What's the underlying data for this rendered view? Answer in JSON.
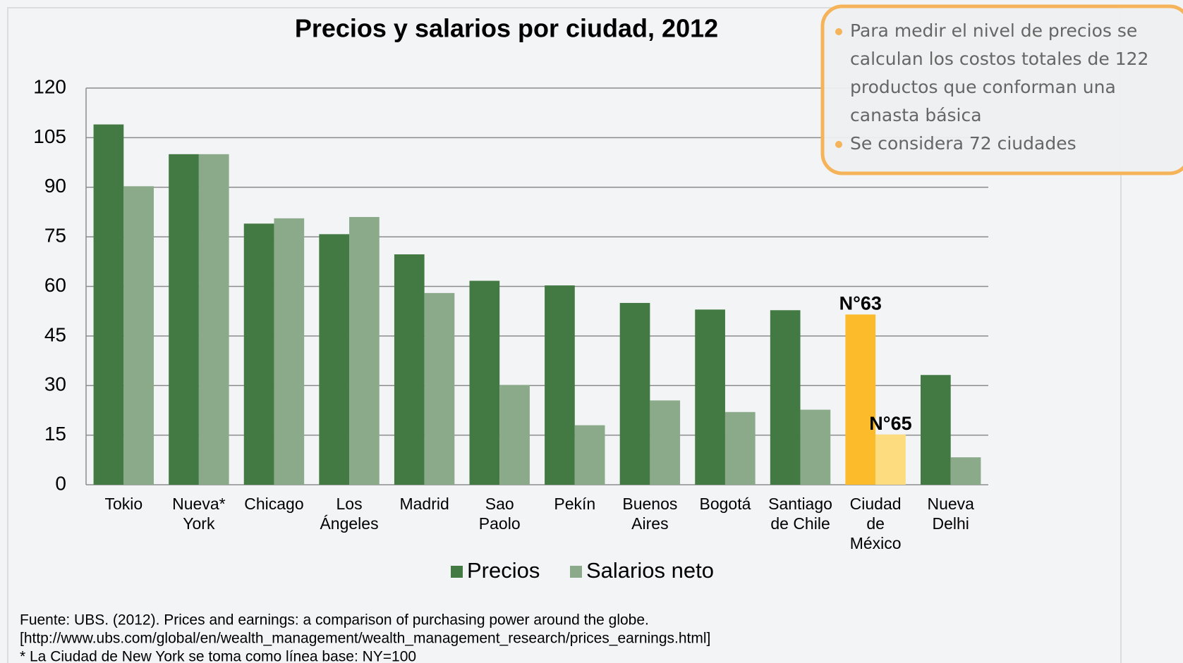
{
  "chart_data": {
    "type": "bar",
    "title": "Precios y salarios por ciudad, 2012",
    "categories": [
      [
        "Tokio"
      ],
      [
        "Nueva*",
        "York"
      ],
      [
        "Chicago"
      ],
      [
        "Los",
        "Ángeles"
      ],
      [
        "Madrid"
      ],
      [
        "Sao",
        "Paolo"
      ],
      [
        "Pekín"
      ],
      [
        "Buenos",
        "Aires"
      ],
      [
        "Bogotá"
      ],
      [
        "Santiago",
        "de Chile"
      ],
      [
        "Ciudad",
        "de",
        "México"
      ],
      [
        "Nueva",
        "Delhi"
      ]
    ],
    "series": [
      {
        "name": "Precios",
        "color": "#437a43",
        "colors": [
          "#437a43",
          "#437a43",
          "#437a43",
          "#437a43",
          "#437a43",
          "#437a43",
          "#437a43",
          "#437a43",
          "#437a43",
          "#437a43",
          "#fbbb2b",
          "#437a43"
        ],
        "values": [
          109,
          100,
          79,
          75.8,
          69.7,
          61.7,
          60.3,
          55,
          53,
          52.8,
          51.5,
          33.2
        ],
        "annotations": [
          null,
          null,
          null,
          null,
          null,
          null,
          null,
          null,
          null,
          null,
          "N°63",
          null
        ]
      },
      {
        "name": "Salarios neto",
        "color": "#8aaa8a",
        "colors": [
          "#8aaa8a",
          "#8aaa8a",
          "#8aaa8a",
          "#8aaa8a",
          "#8aaa8a",
          "#8aaa8a",
          "#8aaa8a",
          "#8aaa8a",
          "#8aaa8a",
          "#8aaa8a",
          "#fddc80",
          "#8aaa8a"
        ],
        "values": [
          90.3,
          100,
          80.6,
          81,
          58,
          30.2,
          18,
          25.5,
          22,
          22.7,
          15.2,
          8.3
        ],
        "annotations": [
          null,
          null,
          null,
          null,
          null,
          null,
          null,
          null,
          null,
          null,
          "N°65",
          null
        ]
      }
    ],
    "ylim": [
      0,
      120
    ],
    "yticks": [
      0,
      15,
      30,
      45,
      60,
      75,
      90,
      105,
      120
    ],
    "grid": true,
    "legend": "bottom",
    "notes": [
      [
        "Para medir el nivel de precios se",
        "calculan los costos totales de 122",
        "productos que conforman una",
        "canasta básica"
      ],
      [
        "Se considera 72 ciudades"
      ]
    ],
    "source": [
      "Fuente: UBS. (2012). Prices and earnings: a comparison of purchasing power around the globe.",
      "[http://www.ubs.com/global/en/wealth_management/wealth_management_research/prices_earnings.html]",
      "* La Ciudad de New York se toma como línea base: NY=100"
    ]
  }
}
